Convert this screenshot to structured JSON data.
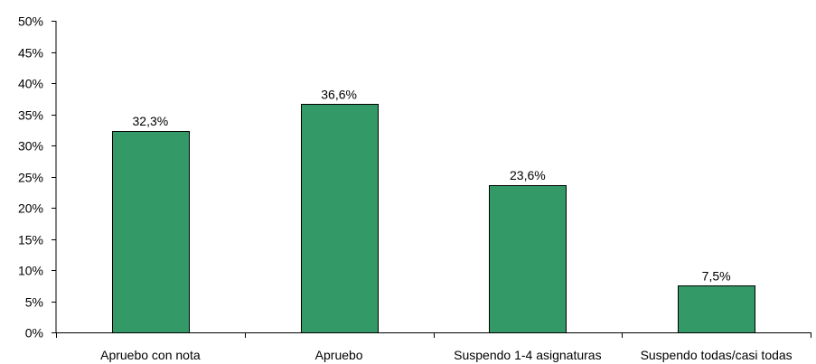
{
  "chart_data": {
    "type": "bar",
    "title": "",
    "xlabel": "",
    "ylabel": "",
    "categories": [
      "Apruebo con nota",
      "Apruebo",
      "Suspendo 1-4 asignaturas",
      "Suspendo todas/casi todas"
    ],
    "values": [
      32.3,
      36.6,
      23.6,
      7.5
    ],
    "data_labels": [
      "32,3%",
      "36,6%",
      "23,6%",
      "7,5%"
    ],
    "yticks": [
      "0%",
      "5%",
      "10%",
      "15%",
      "20%",
      "25%",
      "30%",
      "35%",
      "40%",
      "45%",
      "50%"
    ],
    "ylim": [
      0,
      50
    ],
    "ytick_step": 5,
    "grid": false,
    "legend": "none",
    "bar_color": "#339966",
    "bar_edge_color": "#000000"
  }
}
